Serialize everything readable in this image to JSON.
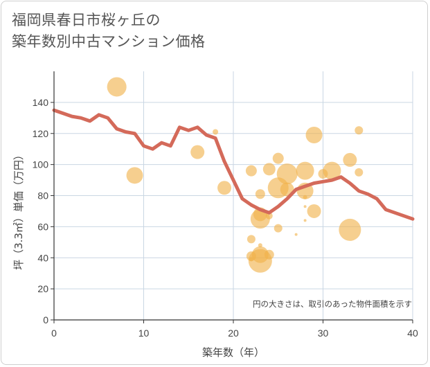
{
  "chart_data": {
    "type": "scatter",
    "title_lines": [
      "福岡県春日市桜ヶ丘の",
      "築年数別中古マンション価格"
    ],
    "xlabel": "築年数（年）",
    "ylabel": "坪（3.3㎡）単価（万円）",
    "xlim": [
      0,
      40
    ],
    "ylim": [
      0,
      160
    ],
    "xticks": [
      0,
      10,
      20,
      30,
      40
    ],
    "yticks": [
      0,
      20,
      40,
      60,
      80,
      100,
      120,
      140
    ],
    "grid": true,
    "note": "円の大きさは、取引のあった物件面積を示す",
    "colors": {
      "bubble": "#f0b24a",
      "line": "#d46a5a",
      "grid": "#c9d6e3",
      "axis": "#333333"
    },
    "points": [
      {
        "x": 7,
        "y": 150,
        "s": 14
      },
      {
        "x": 9,
        "y": 93,
        "s": 12
      },
      {
        "x": 16,
        "y": 108,
        "s": 10
      },
      {
        "x": 18,
        "y": 121,
        "s": 4
      },
      {
        "x": 19,
        "y": 85,
        "s": 10
      },
      {
        "x": 22,
        "y": 96,
        "s": 8
      },
      {
        "x": 22,
        "y": 52,
        "s": 6
      },
      {
        "x": 22,
        "y": 41,
        "s": 7
      },
      {
        "x": 22,
        "y": 39,
        "s": 3
      },
      {
        "x": 23,
        "y": 81,
        "s": 7
      },
      {
        "x": 23,
        "y": 68,
        "s": 10
      },
      {
        "x": 23,
        "y": 65,
        "s": 14
      },
      {
        "x": 23,
        "y": 48,
        "s": 3
      },
      {
        "x": 23,
        "y": 42,
        "s": 12
      },
      {
        "x": 23,
        "y": 38,
        "s": 17
      },
      {
        "x": 24,
        "y": 97,
        "s": 9
      },
      {
        "x": 24,
        "y": 67,
        "s": 5
      },
      {
        "x": 24,
        "y": 42,
        "s": 7
      },
      {
        "x": 25,
        "y": 104,
        "s": 8
      },
      {
        "x": 25,
        "y": 85,
        "s": 15
      },
      {
        "x": 25,
        "y": 59,
        "s": 6
      },
      {
        "x": 26,
        "y": 94,
        "s": 15
      },
      {
        "x": 26,
        "y": 84,
        "s": 10
      },
      {
        "x": 27,
        "y": 55,
        "s": 2
      },
      {
        "x": 28,
        "y": 96,
        "s": 13
      },
      {
        "x": 28,
        "y": 83,
        "s": 12
      },
      {
        "x": 28,
        "y": 79,
        "s": 3
      },
      {
        "x": 28,
        "y": 73,
        "s": 2
      },
      {
        "x": 28,
        "y": 64,
        "s": 2
      },
      {
        "x": 29,
        "y": 119,
        "s": 12
      },
      {
        "x": 29,
        "y": 70,
        "s": 10
      },
      {
        "x": 30,
        "y": 94,
        "s": 7
      },
      {
        "x": 31,
        "y": 96,
        "s": 13
      },
      {
        "x": 33,
        "y": 103,
        "s": 10
      },
      {
        "x": 33,
        "y": 58,
        "s": 16
      },
      {
        "x": 34,
        "y": 122,
        "s": 6
      },
      {
        "x": 34,
        "y": 95,
        "s": 6
      }
    ],
    "line": {
      "x": [
        0,
        1,
        2,
        3,
        4,
        5,
        6,
        7,
        8,
        9,
        10,
        11,
        12,
        13,
        14,
        15,
        16,
        17,
        18,
        19,
        20,
        21,
        22,
        23,
        24,
        25,
        26,
        27,
        28,
        29,
        30,
        31,
        32,
        33,
        34,
        35,
        36,
        37,
        38,
        39,
        40
      ],
      "y": [
        135,
        133,
        131,
        130,
        128,
        132,
        130,
        123,
        121,
        120,
        112,
        110,
        114,
        112,
        124,
        122,
        124,
        119,
        117,
        102,
        90,
        78,
        74,
        71,
        69,
        73,
        78,
        84,
        86,
        88,
        89,
        90,
        92,
        88,
        83,
        81,
        78,
        71,
        69,
        67,
        65
      ]
    }
  }
}
